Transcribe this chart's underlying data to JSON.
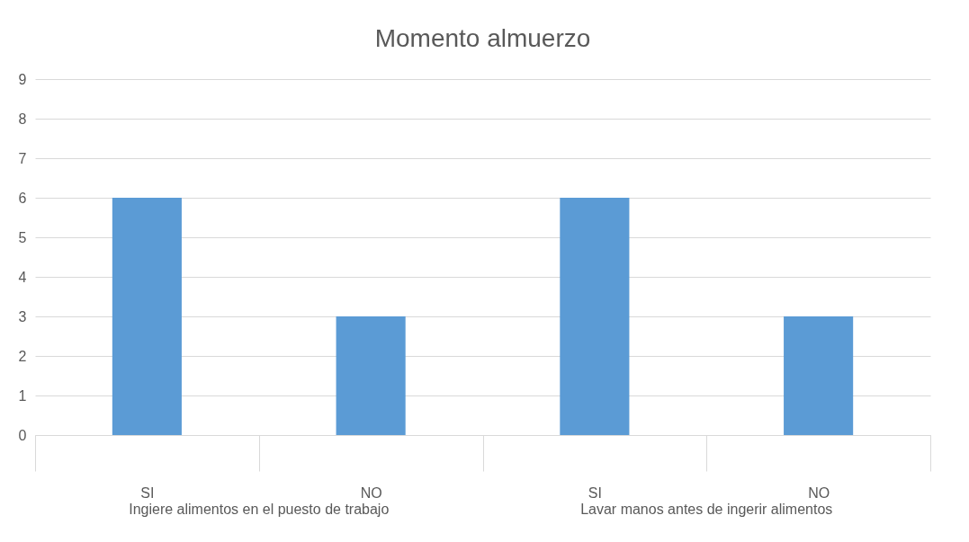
{
  "chart_data": {
    "type": "bar",
    "title": "Momento almuerzo",
    "categories": [
      "SI",
      "NO",
      "SI",
      "NO"
    ],
    "values": [
      6,
      3,
      6,
      3
    ],
    "color": "#5b9bd5",
    "ylim": [
      0,
      9
    ],
    "yticks": [
      0,
      1,
      2,
      3,
      4,
      5,
      6,
      7,
      8,
      9
    ],
    "grid": "y",
    "annotations": [
      "Ingiere alimentos en el puesto de trabajo",
      "Lavar manos antes de ingerir alimentos"
    ]
  }
}
